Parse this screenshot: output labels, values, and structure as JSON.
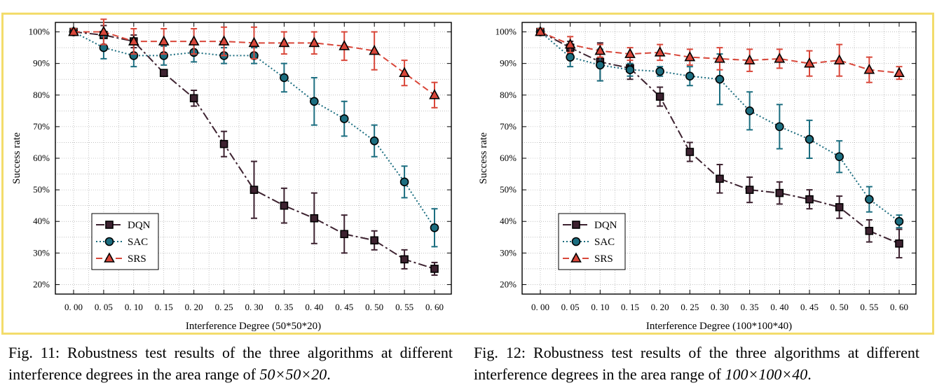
{
  "frame": {
    "border_color": "#f3dc6b"
  },
  "chart_data": [
    {
      "type": "line",
      "ylabel": "Success rate",
      "xlabel": "Interference Degree  (50*50*20)",
      "x": [
        0.0,
        0.05,
        0.1,
        0.15,
        0.2,
        0.25,
        0.3,
        0.35,
        0.4,
        0.45,
        0.5,
        0.55,
        0.6
      ],
      "x_tick_labels": [
        "0. 00",
        "0. 05",
        "0. 10",
        "0. 15",
        "0. 20",
        "0. 25",
        "0. 30",
        "0. 35",
        "0. 40",
        "0. 45",
        "0. 50",
        "0. 55",
        "0. 60"
      ],
      "y_tick_labels": [
        "20%",
        "30%",
        "40%",
        "50%",
        "60%",
        "70%",
        "80%",
        "90%",
        "100%"
      ],
      "ylim": [
        17,
        103
      ],
      "grid": true,
      "legend_position": "bottom-left",
      "series": [
        {
          "name": "DQN",
          "color": "#3d2230",
          "marker": "square",
          "linestyle": "dashdot",
          "values": [
            100,
            99,
            97,
            87,
            79,
            64.5,
            50,
            45,
            41,
            36,
            34,
            28,
            25
          ],
          "errors": [
            1,
            3,
            2,
            1,
            2.5,
            4,
            9,
            5.5,
            8,
            6,
            3,
            3,
            2
          ]
        },
        {
          "name": "SAC",
          "color": "#1c6e80",
          "marker": "circle",
          "linestyle": "dotted",
          "values": [
            100,
            95,
            92.5,
            92.5,
            93.5,
            92.5,
            92.5,
            85.5,
            78,
            72.5,
            65.5,
            52.5,
            38
          ],
          "errors": [
            1,
            3.5,
            3.5,
            3,
            3,
            2.5,
            2.5,
            4.5,
            7.5,
            5.5,
            5,
            5,
            6
          ]
        },
        {
          "name": "SRS",
          "color": "#d9473a",
          "marker": "triangle",
          "linestyle": "dashed",
          "values": [
            100,
            100,
            97,
            97,
            97,
            97,
            96.5,
            96.5,
            96.5,
            95.5,
            94,
            87,
            80
          ],
          "errors": [
            1,
            4,
            4,
            4,
            4,
            4.5,
            5,
            3.5,
            3.5,
            4.5,
            6,
            4,
            4
          ]
        }
      ]
    },
    {
      "type": "line",
      "ylabel": "Success rate",
      "xlabel": "Interference Degree  (100*100*40)",
      "x": [
        0.0,
        0.05,
        0.1,
        0.15,
        0.2,
        0.25,
        0.3,
        0.35,
        0.4,
        0.45,
        0.5,
        0.55,
        0.6
      ],
      "x_tick_labels": [
        "0. 00",
        "0. 05",
        "0. 10",
        "0. 15",
        "0. 20",
        "0. 25",
        "0. 30",
        "0. 35",
        "0. 40",
        "0. 45",
        "0. 50",
        "0. 55",
        "0. 60"
      ],
      "y_tick_labels": [
        "20%",
        "30%",
        "40%",
        "50%",
        "60%",
        "70%",
        "80%",
        "90%",
        "100%"
      ],
      "ylim": [
        17,
        103
      ],
      "grid": true,
      "legend_position": "bottom-left",
      "series": [
        {
          "name": "DQN",
          "color": "#3d2230",
          "marker": "square",
          "linestyle": "dashdot",
          "values": [
            100,
            95,
            90.5,
            88.5,
            79.5,
            62,
            53.5,
            50,
            49,
            47,
            44.5,
            37,
            33
          ],
          "errors": [
            1,
            2,
            6,
            3.5,
            3,
            3,
            4.5,
            4,
            3.5,
            3,
            3.5,
            3.5,
            4.5
          ]
        },
        {
          "name": "SAC",
          "color": "#1c6e80",
          "marker": "circle",
          "linestyle": "dotted",
          "values": [
            100,
            92,
            89.5,
            88,
            87.5,
            86,
            85,
            75,
            70,
            66,
            60.5,
            47,
            40
          ],
          "errors": [
            1,
            3,
            5,
            2,
            1.5,
            3,
            8,
            6,
            7,
            6,
            5,
            4,
            2
          ]
        },
        {
          "name": "SRS",
          "color": "#d9473a",
          "marker": "triangle",
          "linestyle": "dashed",
          "values": [
            100,
            96,
            94,
            93,
            93.5,
            92,
            91.5,
            91,
            91.5,
            90,
            91,
            88,
            87
          ],
          "errors": [
            1,
            2.5,
            2,
            2,
            2.5,
            2.5,
            3.5,
            3.5,
            3,
            4,
            5,
            4,
            2
          ]
        }
      ]
    }
  ],
  "captions": [
    {
      "prefix": "Fig. 11: Robustness test results of the three algorithms at different interference degrees in the area range of ",
      "emph": "50×50×20",
      "suffix": "."
    },
    {
      "prefix": "Fig. 12: Robustness test results of the three algorithms at different interference degrees in the area range of ",
      "emph": "100×100×40",
      "suffix": "."
    }
  ]
}
